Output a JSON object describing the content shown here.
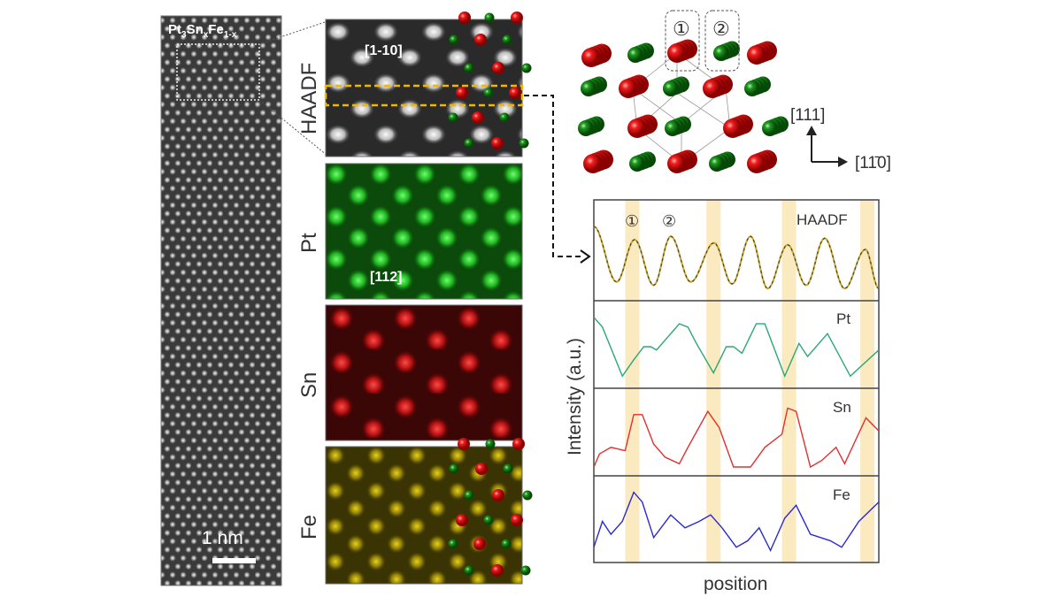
{
  "stem_image": {
    "compound_label": {
      "base": "Pt",
      "sub1": "3",
      "mid": "Sn",
      "sub2": "x",
      "end": "Fe",
      "sub3": "1-x"
    },
    "scale_bar_label": "1 nm"
  },
  "maps": {
    "haadf": {
      "label": "HAADF",
      "zone_axis": "[1-10]"
    },
    "pt": {
      "label": "Pt",
      "zone_axis": "[112]"
    },
    "sn": {
      "label": "Sn"
    },
    "fe": {
      "label": "Fe"
    }
  },
  "crystal_model": {
    "column_labels": [
      "①",
      "②"
    ],
    "axis_vertical": "[111]",
    "axis_horizontal": "[11̄0]"
  },
  "colors": {
    "sn_atom": "#e01818",
    "pt_atom": "#1f8a1f",
    "haadf_line": "#c8a830",
    "pt_line": "#2aa876",
    "sn_line": "#e03030",
    "fe_line": "#2a2ad0",
    "highlight": "#fbe9c0",
    "selection_box": "#f2b800"
  },
  "chart_data": {
    "type": "line",
    "xlabel": "position",
    "ylabel": "Intensity (a.u.)",
    "column_markers": [
      "①",
      "②"
    ],
    "highlight_positions": [
      0.135,
      0.42,
      0.685,
      0.96
    ],
    "series": [
      {
        "name": "HAADF",
        "x": [
          0,
          0.08,
          0.143,
          0.21,
          0.27,
          0.34,
          0.422,
          0.485,
          0.55,
          0.61,
          0.68,
          0.745,
          0.81,
          0.88,
          0.953,
          1.0
        ],
        "y": [
          1.0,
          0.15,
          0.8,
          0.1,
          0.85,
          0.15,
          0.75,
          0.12,
          0.85,
          0.05,
          0.72,
          0.1,
          0.82,
          0.05,
          0.65,
          0.05
        ]
      },
      {
        "name": "Pt",
        "x": [
          0,
          0.03,
          0.1,
          0.14,
          0.175,
          0.2,
          0.22,
          0.26,
          0.3,
          0.33,
          0.36,
          0.42,
          0.465,
          0.49,
          0.52,
          0.57,
          0.6,
          0.67,
          0.72,
          0.75,
          0.82,
          0.9,
          1.0
        ],
        "y": [
          0.95,
          0.8,
          0.05,
          0.3,
          0.5,
          0.5,
          0.45,
          0.65,
          0.85,
          0.8,
          0.55,
          0.1,
          0.5,
          0.5,
          0.4,
          0.85,
          0.85,
          0.05,
          0.55,
          0.35,
          0.7,
          0.05,
          0.45
        ]
      },
      {
        "name": "Sn",
        "x": [
          0,
          0.02,
          0.06,
          0.11,
          0.14,
          0.17,
          0.21,
          0.25,
          0.3,
          0.33,
          0.4,
          0.44,
          0.49,
          0.55,
          0.6,
          0.66,
          0.68,
          0.71,
          0.76,
          0.8,
          0.85,
          0.88,
          0.955,
          1.0
        ],
        "y": [
          0.0,
          0.2,
          0.3,
          0.25,
          0.8,
          0.8,
          0.35,
          0.15,
          0.05,
          0.3,
          0.85,
          0.6,
          0.0,
          0.0,
          0.3,
          0.5,
          0.9,
          0.85,
          0.0,
          0.1,
          0.3,
          0.05,
          0.75,
          0.55
        ]
      },
      {
        "name": "Fe",
        "x": [
          0,
          0.03,
          0.06,
          0.1,
          0.14,
          0.17,
          0.21,
          0.27,
          0.32,
          0.37,
          0.41,
          0.45,
          0.5,
          0.54,
          0.58,
          0.62,
          0.67,
          0.71,
          0.76,
          0.83,
          0.87,
          0.93,
          1.0
        ],
        "y": [
          0.1,
          0.5,
          0.3,
          0.5,
          0.95,
          0.8,
          0.25,
          0.6,
          0.4,
          0.5,
          0.6,
          0.4,
          0.1,
          0.2,
          0.4,
          0.05,
          0.55,
          0.75,
          0.3,
          0.2,
          0.1,
          0.5,
          0.8
        ]
      }
    ]
  }
}
